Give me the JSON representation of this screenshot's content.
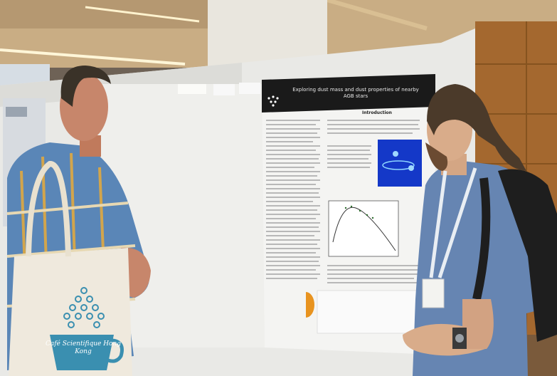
{
  "poster": {
    "title": "Exploring dust mass and dust properties of nearby AGB stars",
    "section_heading": "Introduction"
  },
  "tote_bag": {
    "print_text": "Café Scientifique Hong Kong"
  },
  "colors": {
    "ceiling": "#c9ad84",
    "wall_panel": "#e9e9e6",
    "poster_banner": "#1a1a1a",
    "wood_wall": "#a4682f",
    "shirt_plaid": "#5a86b7",
    "shirt_tshirt": "#6685b2",
    "bag": "#efe9dd",
    "bag_print": "#3a8fb0"
  }
}
